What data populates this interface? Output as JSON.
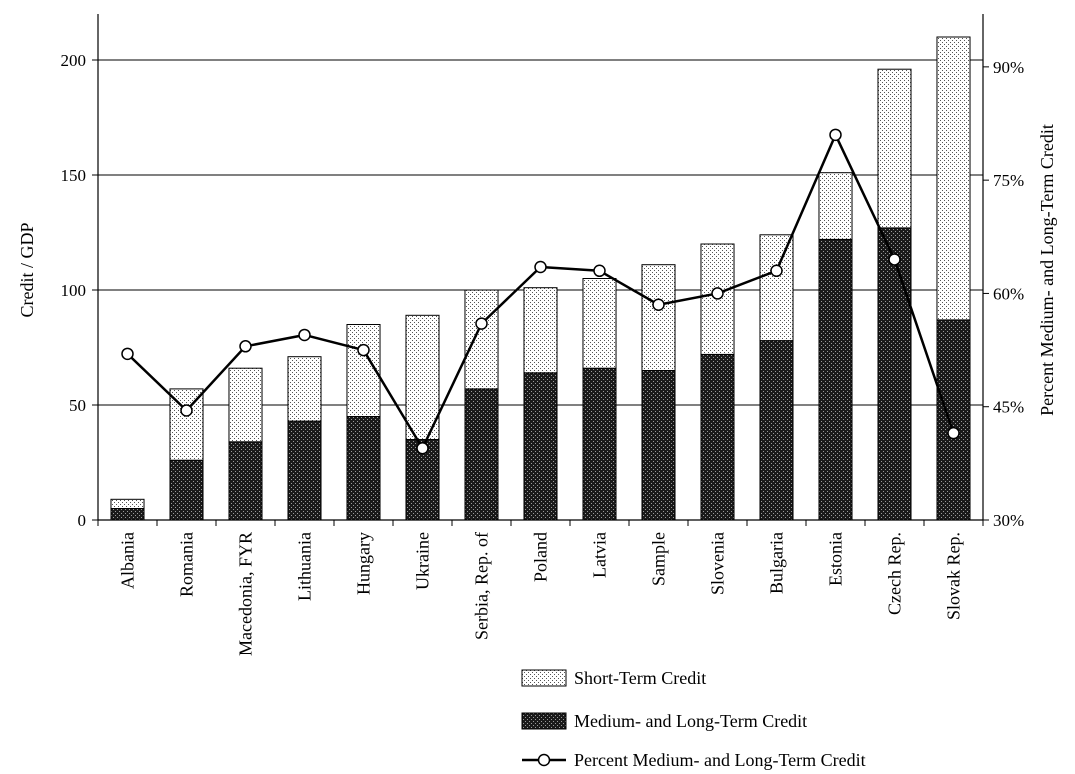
{
  "chart_data": {
    "type": "bar",
    "stacked": true,
    "categories": [
      "Albania",
      "Romania",
      "Macedonia, FYR",
      "Lithuania",
      "Hungary",
      "Ukraine",
      "Serbia, Rep. of",
      "Poland",
      "Latvia",
      "Sample",
      "Slovenia",
      "Bulgaria",
      "Estonia",
      "Czech Rep.",
      "Slovak Rep."
    ],
    "series": [
      {
        "name": "Medium- and Long-Term Credit",
        "axis": "left",
        "pattern": "dark-dots",
        "values": [
          5,
          26,
          34,
          43,
          45,
          35,
          57,
          64,
          66,
          65,
          72,
          78,
          122,
          127,
          87
        ]
      },
      {
        "name": "Short-Term Credit",
        "axis": "left",
        "pattern": "light-dots",
        "values": [
          4,
          31,
          32,
          28,
          40,
          54,
          43,
          37,
          39,
          46,
          48,
          46,
          29,
          69,
          123
        ]
      },
      {
        "name": "Percent Medium- and Long-Term Credit",
        "axis": "right",
        "type": "line",
        "values": [
          52,
          44.5,
          53,
          54.5,
          52.5,
          39.5,
          56,
          63.5,
          63,
          58.5,
          60,
          63,
          81,
          64.5,
          41.5
        ]
      }
    ],
    "ylabel": "Credit / GDP",
    "y2label": "Percent Medium- and Long-Term Credit",
    "ylim": [
      0,
      220
    ],
    "yticks": [
      "0",
      "50",
      "100",
      "150",
      "200"
    ],
    "yticks_values": [
      0,
      50,
      100,
      150,
      200
    ],
    "y2lim": [
      30,
      97
    ],
    "y2ticks": [
      "30%",
      "45%",
      "60%",
      "75%",
      "90%"
    ],
    "y2ticks_values": [
      30,
      45,
      60,
      75,
      90
    ],
    "grid": true,
    "legend_position": "bottom-right"
  }
}
